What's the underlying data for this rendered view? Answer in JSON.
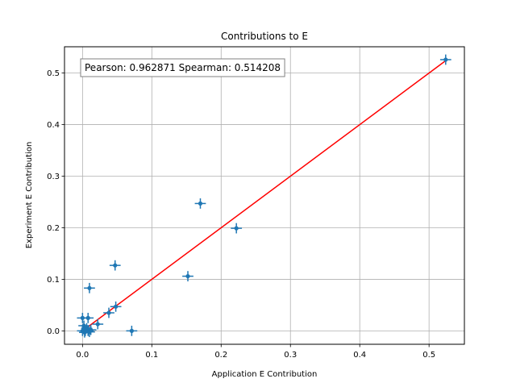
{
  "chart_data": {
    "type": "scatter",
    "title": "Contributions to E",
    "xlabel": "Application E Contribution",
    "ylabel": "Experiment E Contribution",
    "xlim": [
      -0.026,
      0.551
    ],
    "ylim": [
      -0.026,
      0.551
    ],
    "xticks": [
      0.0,
      0.1,
      0.2,
      0.3,
      0.4,
      0.5
    ],
    "yticks": [
      0.0,
      0.1,
      0.2,
      0.3,
      0.4,
      0.5
    ],
    "xtick_labels": [
      "0.0",
      "0.1",
      "0.2",
      "0.3",
      "0.4",
      "0.5"
    ],
    "ytick_labels": [
      "0.0",
      "0.1",
      "0.2",
      "0.3",
      "0.4",
      "0.5"
    ],
    "grid": true,
    "annotation": "Pearson: 0.962871 Spearman: 0.514208",
    "series": [
      {
        "kind": "errorbar-points",
        "color": "#1f77b4",
        "points": [
          {
            "x": 0.524,
            "y": 0.526,
            "xerr": 0.008,
            "yerr": 0.01
          },
          {
            "x": 0.17,
            "y": 0.247,
            "xerr": 0.008,
            "yerr": 0.01
          },
          {
            "x": 0.222,
            "y": 0.199,
            "xerr": 0.008,
            "yerr": 0.01
          },
          {
            "x": 0.047,
            "y": 0.127,
            "xerr": 0.008,
            "yerr": 0.01
          },
          {
            "x": 0.152,
            "y": 0.106,
            "xerr": 0.008,
            "yerr": 0.01
          },
          {
            "x": 0.01,
            "y": 0.083,
            "xerr": 0.008,
            "yerr": 0.01
          },
          {
            "x": 0.048,
            "y": 0.047,
            "xerr": 0.008,
            "yerr": 0.01
          },
          {
            "x": 0.038,
            "y": 0.035,
            "xerr": 0.008,
            "yerr": 0.01
          },
          {
            "x": 0.022,
            "y": 0.013,
            "xerr": 0.008,
            "yerr": 0.01
          },
          {
            "x": 0.071,
            "y": 0.0,
            "xerr": 0.008,
            "yerr": 0.01
          },
          {
            "x": 0.0,
            "y": 0.025,
            "xerr": 0.008,
            "yerr": 0.01
          },
          {
            "x": 0.008,
            "y": 0.025,
            "xerr": 0.008,
            "yerr": 0.01
          },
          {
            "x": 0.002,
            "y": 0.01,
            "xerr": 0.008,
            "yerr": 0.01
          },
          {
            "x": 0.006,
            "y": 0.005,
            "xerr": 0.008,
            "yerr": 0.01
          },
          {
            "x": 0.0,
            "y": 0.0,
            "xerr": 0.008,
            "yerr": 0.01
          },
          {
            "x": 0.004,
            "y": 0.0,
            "xerr": 0.008,
            "yerr": 0.01
          },
          {
            "x": 0.008,
            "y": 0.0,
            "xerr": 0.008,
            "yerr": 0.01
          },
          {
            "x": 0.012,
            "y": 0.002,
            "xerr": 0.008,
            "yerr": 0.01
          },
          {
            "x": 0.003,
            "y": -0.003,
            "xerr": 0.008,
            "yerr": 0.01
          },
          {
            "x": 0.01,
            "y": -0.002,
            "xerr": 0.008,
            "yerr": 0.01
          }
        ]
      },
      {
        "kind": "line",
        "color": "#ff0000",
        "x": [
          0.0,
          0.524
        ],
        "y": [
          0.0,
          0.524
        ]
      }
    ]
  }
}
